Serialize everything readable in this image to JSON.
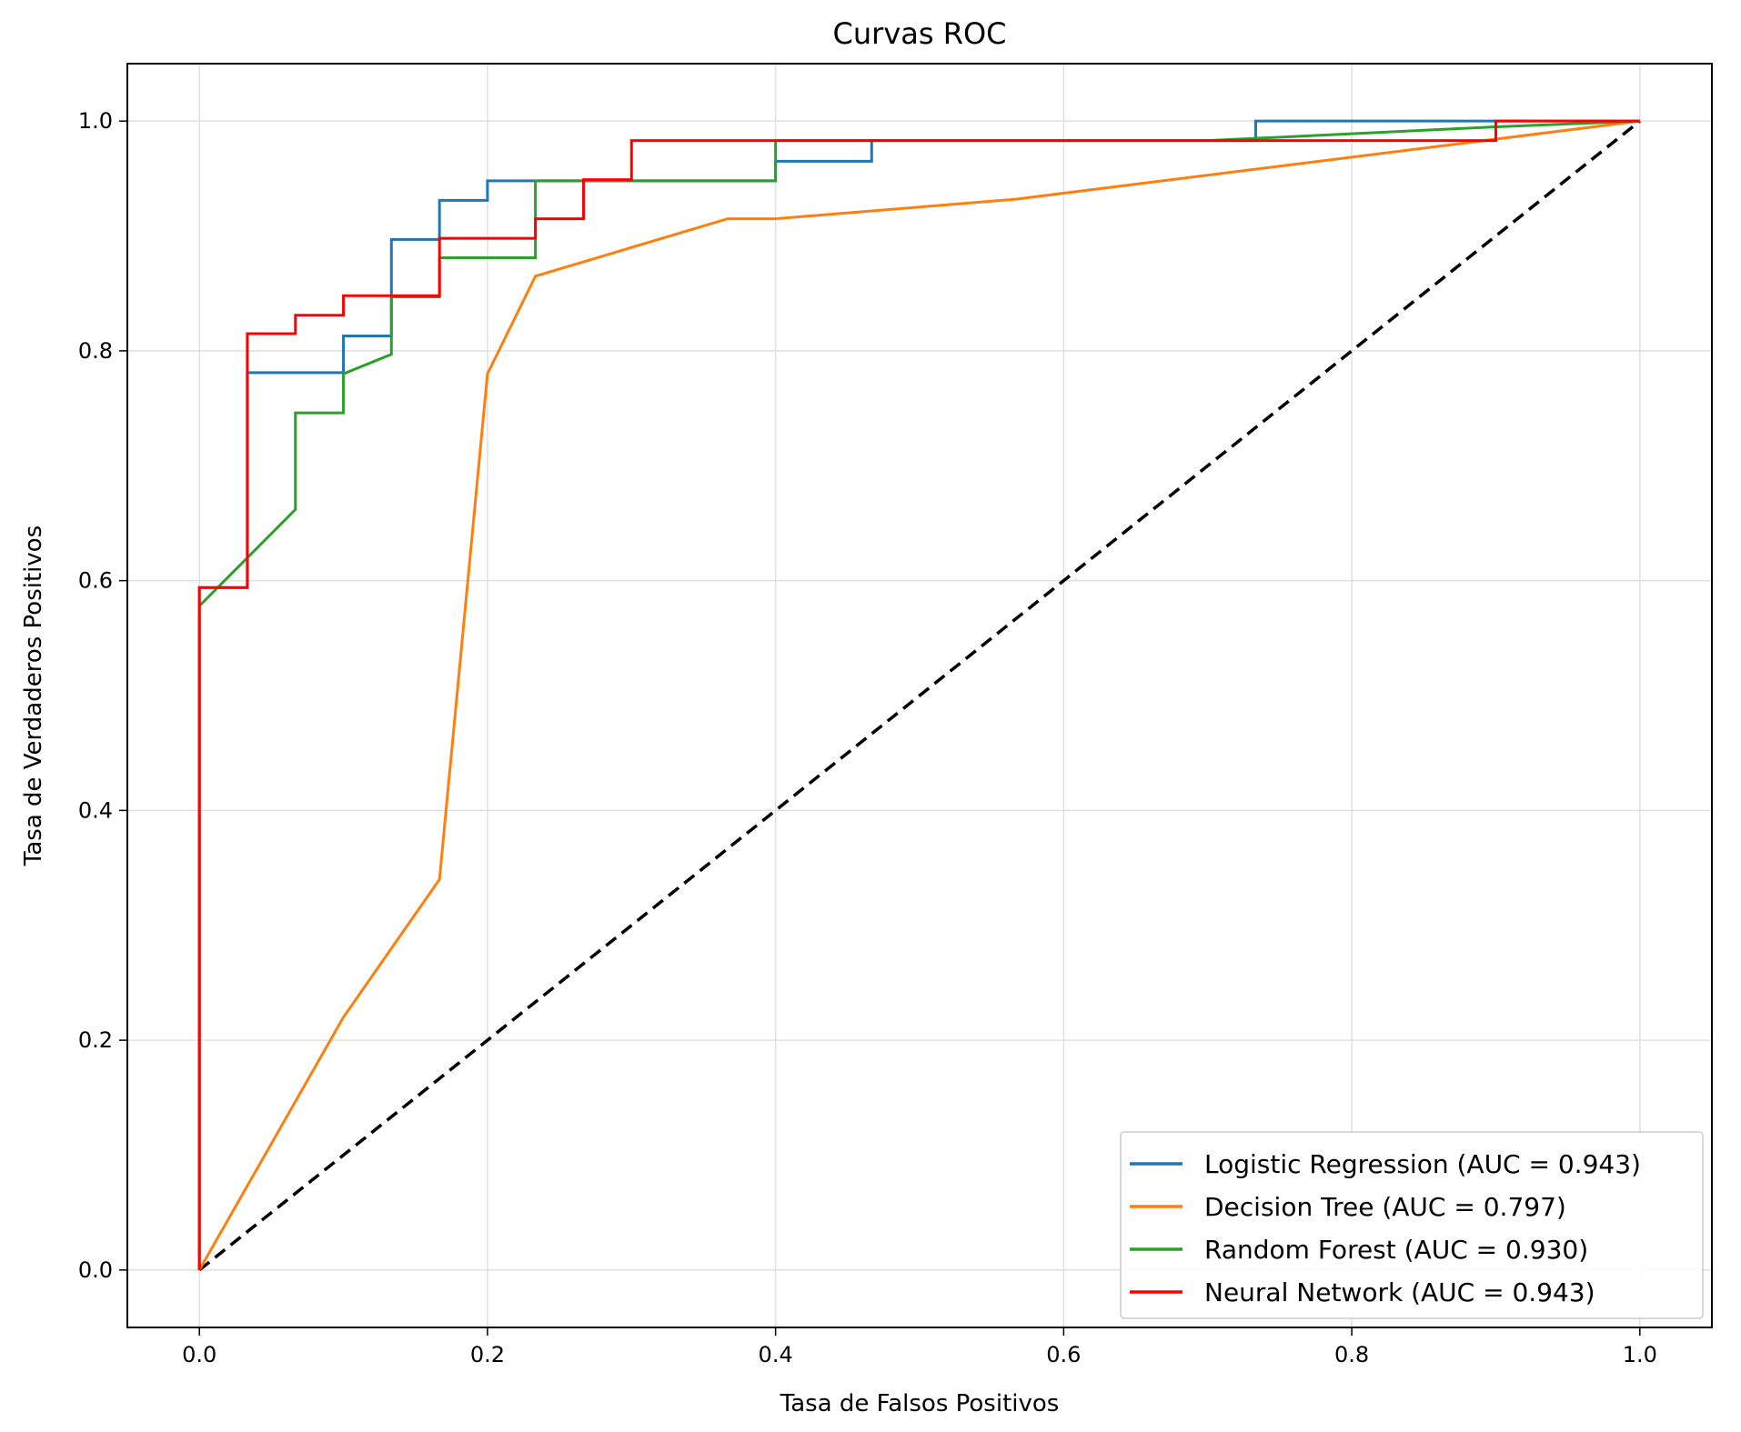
{
  "chart_data": {
    "type": "line",
    "title": "Curvas ROC",
    "xlabel": "Tasa de Falsos Positivos",
    "ylabel": "Tasa de Verdaderos Positivos",
    "xlim": [
      -0.05,
      1.05
    ],
    "ylim": [
      -0.05,
      1.05
    ],
    "xticks": [
      0.0,
      0.2,
      0.4,
      0.6,
      0.8,
      1.0
    ],
    "yticks": [
      0.0,
      0.2,
      0.4,
      0.6,
      0.8,
      1.0
    ],
    "xtick_labels": [
      "0.0",
      "0.2",
      "0.4",
      "0.6",
      "0.8",
      "1.0"
    ],
    "ytick_labels": [
      "0.0",
      "0.2",
      "0.4",
      "0.6",
      "0.8",
      "1.0"
    ],
    "grid": true,
    "legend_position": "lower-right",
    "series": [
      {
        "name": "Logistic Regression (AUC = 0.943)",
        "color": "#1f77b4",
        "style": "step",
        "x": [
          0.0,
          0.0,
          0.0333,
          0.0333,
          0.1,
          0.1,
          0.1333,
          0.1333,
          0.1667,
          0.1667,
          0.2,
          0.2,
          0.4,
          0.4,
          0.4667,
          0.4667,
          0.7333,
          0.7333,
          1.0
        ],
        "y": [
          0.0,
          0.594,
          0.594,
          0.781,
          0.781,
          0.813,
          0.813,
          0.897,
          0.897,
          0.931,
          0.931,
          0.948,
          0.948,
          0.965,
          0.965,
          0.983,
          0.983,
          1.0,
          1.0
        ]
      },
      {
        "name": "Decision Tree (AUC = 0.797)",
        "color": "#ff7f0e",
        "style": "line",
        "x": [
          0.0,
          0.1,
          0.1667,
          0.2,
          0.2333,
          0.3667,
          0.4,
          0.5667,
          1.0
        ],
        "y": [
          0.0,
          0.22,
          0.34,
          0.78,
          0.865,
          0.915,
          0.915,
          0.932,
          1.0
        ]
      },
      {
        "name": "Random Forest (AUC = 0.930)",
        "color": "#2ca02c",
        "style": "line",
        "x": [
          0.0,
          0.0,
          0.0667,
          0.0667,
          0.1,
          0.1,
          0.1333,
          0.1333,
          0.1667,
          0.1667,
          0.2333,
          0.2333,
          0.4,
          0.4,
          0.7,
          0.9,
          1.0
        ],
        "y": [
          0.0,
          0.578,
          0.662,
          0.746,
          0.746,
          0.78,
          0.797,
          0.847,
          0.847,
          0.881,
          0.881,
          0.948,
          0.948,
          0.983,
          0.983,
          0.995,
          1.0
        ]
      },
      {
        "name": "Neural Network (AUC = 0.943)",
        "color": "#ff0000",
        "style": "step",
        "x": [
          0.0,
          0.0,
          0.0333,
          0.0333,
          0.0667,
          0.0667,
          0.1,
          0.1,
          0.1667,
          0.1667,
          0.2333,
          0.2333,
          0.2667,
          0.2667,
          0.3,
          0.3,
          0.9,
          0.9,
          1.0
        ],
        "y": [
          0.0,
          0.594,
          0.594,
          0.815,
          0.815,
          0.831,
          0.831,
          0.848,
          0.848,
          0.898,
          0.898,
          0.915,
          0.915,
          0.949,
          0.949,
          0.983,
          0.983,
          1.0,
          1.0
        ]
      }
    ],
    "reference_line": {
      "color": "#000000",
      "x": [
        0.0,
        1.0
      ],
      "y": [
        0.0,
        1.0
      ]
    }
  }
}
